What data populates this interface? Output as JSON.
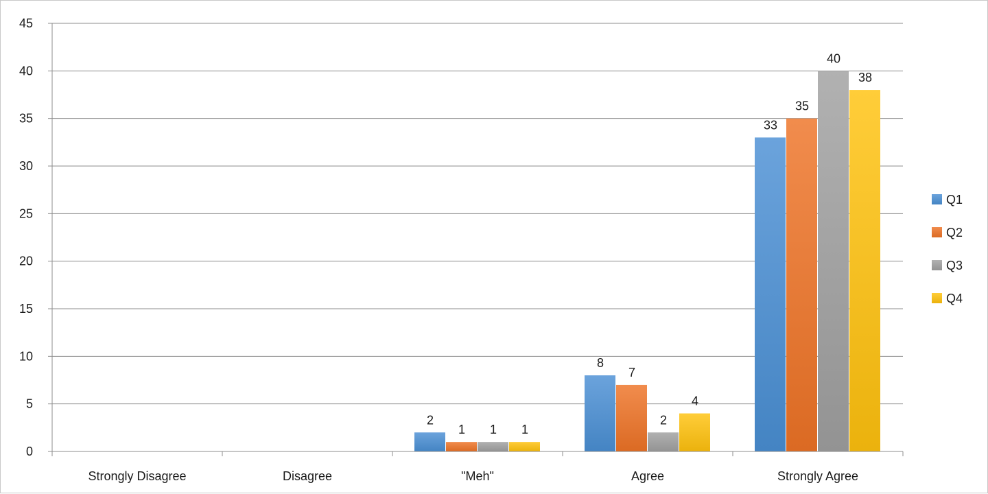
{
  "chart_data": {
    "type": "bar",
    "categories": [
      "Strongly Disagree",
      "Disagree",
      "\"Meh\"",
      "Agree",
      "Strongly Agree"
    ],
    "series": [
      {
        "name": "Q1",
        "color": "#4a8fd4",
        "values": [
          0,
          0,
          2,
          8,
          33
        ]
      },
      {
        "name": "Q2",
        "color": "#ee7326",
        "values": [
          0,
          0,
          1,
          7,
          35
        ]
      },
      {
        "name": "Q3",
        "color": "#a0a0a0",
        "values": [
          0,
          0,
          1,
          2,
          40
        ]
      },
      {
        "name": "Q4",
        "color": "#ffc20e",
        "values": [
          0,
          0,
          1,
          4,
          38
        ]
      }
    ],
    "ylim": [
      0,
      45
    ],
    "yticks": [
      0,
      5,
      10,
      15,
      20,
      25,
      30,
      35,
      40,
      45
    ],
    "grid": true,
    "legend": "right",
    "data_labels": true,
    "title": "",
    "xlabel": "",
    "ylabel": ""
  }
}
